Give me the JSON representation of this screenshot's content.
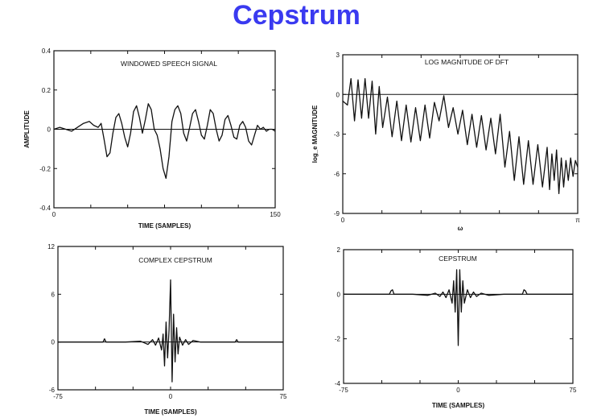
{
  "slide": {
    "title": "Cepstrum"
  },
  "chart_data": [
    {
      "type": "line",
      "title": "WINDOWED SPEECH SIGNAL",
      "xlabel": "TIME (SAMPLES)",
      "ylabel": "AMPLITUDE",
      "xlim": [
        0,
        150
      ],
      "ylim": [
        -0.4,
        0.4
      ],
      "xtick_labels": [
        "0",
        "150"
      ],
      "ytick_labels": [
        "0.4",
        "0.2",
        "0",
        "-0.2",
        "-0.4"
      ],
      "ytick_values": [
        0.4,
        0.2,
        0,
        -0.2,
        -0.4
      ],
      "grid": false,
      "series": [
        {
          "x": [
            0,
            4,
            8,
            12,
            16,
            20,
            24,
            27,
            30,
            32,
            34,
            36,
            38,
            40,
            42,
            44,
            46,
            48,
            50,
            52,
            54,
            56,
            58,
            60,
            62,
            64,
            66,
            68,
            70,
            72,
            74,
            76,
            78,
            80,
            82,
            84,
            86,
            88,
            90,
            92,
            94,
            96,
            98,
            100,
            102,
            104,
            106,
            108,
            110,
            112,
            114,
            116,
            118,
            120,
            122,
            124,
            126,
            128,
            130,
            132,
            134,
            136,
            138,
            140,
            142,
            144,
            146,
            148,
            150
          ],
          "y": [
            0,
            0.01,
            0,
            -0.01,
            0.01,
            0.03,
            0.04,
            0.02,
            0.01,
            0.03,
            -0.05,
            -0.14,
            -0.12,
            -0.02,
            0.06,
            0.08,
            0.03,
            -0.04,
            -0.09,
            -0.02,
            0.09,
            0.12,
            0.06,
            -0.02,
            0.05,
            0.13,
            0.1,
            0.0,
            -0.03,
            -0.1,
            -0.2,
            -0.25,
            -0.14,
            0.04,
            0.1,
            0.12,
            0.08,
            -0.02,
            -0.06,
            0.01,
            0.08,
            0.1,
            0.04,
            -0.03,
            -0.05,
            0.02,
            0.1,
            0.08,
            0.0,
            -0.06,
            -0.03,
            0.05,
            0.07,
            0.02,
            -0.04,
            -0.05,
            0.02,
            0.04,
            0.01,
            -0.06,
            -0.08,
            -0.03,
            0.02,
            0.0,
            0.01,
            -0.01,
            0,
            0,
            -0.01
          ]
        }
      ]
    },
    {
      "type": "line",
      "title": "LOG MAGNITUDE OF DFT",
      "xlabel": "ω",
      "ylabel": "log_e MAGNITUDE",
      "xlim": [
        0,
        1
      ],
      "ylim": [
        -9,
        3
      ],
      "xtick_labels": [
        "0",
        "π"
      ],
      "ytick_labels": [
        "3",
        "0",
        "-3",
        "-6",
        "-9"
      ],
      "ytick_values": [
        3,
        0,
        -3,
        -6,
        -9
      ],
      "grid": false,
      "series": [
        {
          "x": [
            0,
            0.02,
            0.035,
            0.05,
            0.065,
            0.08,
            0.095,
            0.11,
            0.125,
            0.14,
            0.155,
            0.17,
            0.19,
            0.21,
            0.23,
            0.25,
            0.27,
            0.29,
            0.31,
            0.33,
            0.35,
            0.37,
            0.39,
            0.41,
            0.43,
            0.45,
            0.47,
            0.49,
            0.51,
            0.53,
            0.55,
            0.57,
            0.59,
            0.61,
            0.63,
            0.65,
            0.67,
            0.69,
            0.71,
            0.73,
            0.75,
            0.77,
            0.79,
            0.81,
            0.83,
            0.85,
            0.87,
            0.88,
            0.89,
            0.9,
            0.91,
            0.92,
            0.93,
            0.94,
            0.95,
            0.96,
            0.97,
            0.98,
            0.99,
            1.0
          ],
          "y": [
            -0.5,
            -0.8,
            1.2,
            -2.0,
            1.1,
            -1.8,
            1.2,
            -1.8,
            1.0,
            -3.0,
            0.6,
            -2.5,
            -0.2,
            -3.2,
            -0.5,
            -3.5,
            -0.8,
            -3.6,
            -1.0,
            -3.5,
            -0.8,
            -3.3,
            -0.6,
            -2.0,
            -0.1,
            -2.5,
            -1.0,
            -3.0,
            -1.2,
            -3.8,
            -1.5,
            -4.0,
            -1.6,
            -4.2,
            -1.8,
            -4.5,
            -1.5,
            -5.5,
            -2.8,
            -6.5,
            -3.2,
            -6.8,
            -3.5,
            -6.8,
            -3.8,
            -7.0,
            -4.0,
            -7.2,
            -4.5,
            -6.5,
            -4.2,
            -7.5,
            -4.8,
            -7.0,
            -5.0,
            -6.5,
            -4.8,
            -6.2,
            -5.0,
            -5.5
          ]
        }
      ]
    },
    {
      "type": "line",
      "title": "COMPLEX CEPSTRUM",
      "xlabel": "TIME (SAMPLES)",
      "ylabel": "",
      "xlim": [
        -75,
        75
      ],
      "ylim": [
        -6,
        12
      ],
      "xtick_labels": [
        "-75",
        "0",
        "75"
      ],
      "ytick_labels": [
        "12",
        "6",
        "0",
        "-6"
      ],
      "ytick_values": [
        12,
        6,
        0,
        -6
      ],
      "grid": false,
      "series": [
        {
          "x": [
            -75,
            -60,
            -45,
            -44,
            -43,
            -30,
            -20,
            -15,
            -12,
            -10,
            -8,
            -6,
            -5,
            -4,
            -3,
            -2,
            -1,
            0,
            1,
            2,
            3,
            4,
            5,
            6,
            8,
            10,
            12,
            15,
            20,
            30,
            43,
            44,
            45,
            60,
            75
          ],
          "y": [
            0,
            0,
            0,
            0.4,
            0,
            0,
            0.1,
            -0.3,
            0.3,
            -0.4,
            0.5,
            -1.0,
            1.0,
            -3.0,
            2.5,
            -2.0,
            1.5,
            7.8,
            -5.0,
            3.5,
            -2.5,
            1.8,
            -1.5,
            0.6,
            -0.4,
            0.3,
            -0.3,
            0.2,
            0,
            0,
            0,
            0.3,
            0,
            0,
            0
          ]
        }
      ]
    },
    {
      "type": "line",
      "title": "CEPSTRUM",
      "xlabel": "TIME (SAMPLES)",
      "ylabel": "",
      "xlim": [
        -75,
        75
      ],
      "ylim": [
        -4,
        2
      ],
      "xtick_labels": [
        "-75",
        "0",
        "75"
      ],
      "ytick_labels": [
        "2",
        "0",
        "-2",
        "-4"
      ],
      "ytick_values": [
        2,
        0,
        -2,
        -4
      ],
      "grid": false,
      "series": [
        {
          "x": [
            -75,
            -45,
            -44,
            -43,
            -42,
            -30,
            -20,
            -15,
            -12,
            -10,
            -8,
            -6,
            -4,
            -3,
            -2,
            -1,
            0,
            1,
            2,
            3,
            4,
            6,
            8,
            10,
            12,
            15,
            20,
            30,
            42,
            43,
            44,
            45,
            75
          ],
          "y": [
            0,
            0,
            0.15,
            0.2,
            0,
            0,
            -0.05,
            0.05,
            -0.1,
            0.1,
            -0.15,
            0.2,
            -0.4,
            0.6,
            -0.8,
            1.1,
            -2.3,
            1.1,
            -0.8,
            0.6,
            -0.4,
            0.2,
            -0.15,
            0.1,
            -0.1,
            0.05,
            -0.05,
            0,
            0,
            0.2,
            0.15,
            0,
            0
          ]
        }
      ]
    }
  ]
}
